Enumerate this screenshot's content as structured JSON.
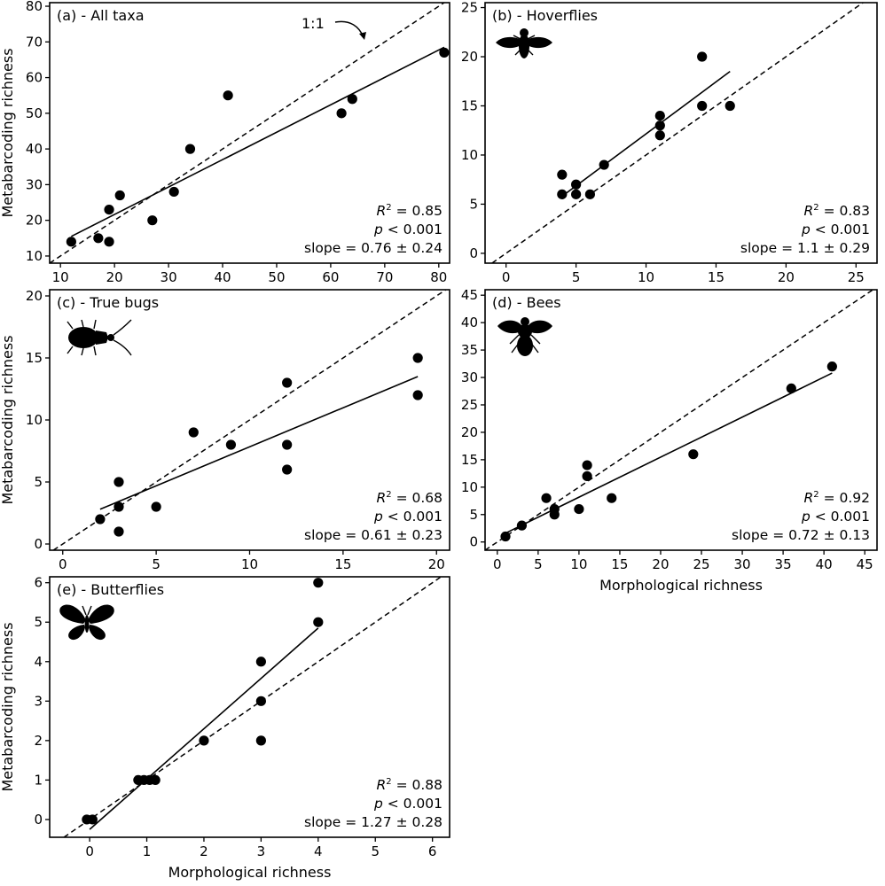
{
  "colors": {
    "points": "#000000",
    "lines": "#000000",
    "background": "#ffffff"
  },
  "chart_data": [
    {
      "id": "a",
      "type": "scatter",
      "title": "(a) - All taxa",
      "xlabel": "",
      "ylabel": "Metabarcoding richness",
      "xlim": [
        8,
        82
      ],
      "ylim": [
        8,
        81
      ],
      "xticks": [
        10,
        20,
        30,
        40,
        50,
        60,
        70,
        80
      ],
      "yticks": [
        10,
        20,
        30,
        40,
        50,
        60,
        70,
        80
      ],
      "points": [
        [
          12,
          14
        ],
        [
          17,
          15
        ],
        [
          19,
          14
        ],
        [
          19,
          23
        ],
        [
          21,
          27
        ],
        [
          27,
          20
        ],
        [
          31,
          28
        ],
        [
          34,
          40
        ],
        [
          41,
          55
        ],
        [
          62,
          50
        ],
        [
          64,
          54
        ],
        [
          81,
          67
        ]
      ],
      "fit_line": [
        [
          12,
          15.5
        ],
        [
          81,
          68.5
        ]
      ],
      "reference_line": "1:1",
      "annotation": "1:1",
      "stats": {
        "r2": "0.85",
        "p": "< 0.001",
        "slope": "0.76 ± 0.24"
      },
      "icon": ""
    },
    {
      "id": "b",
      "type": "scatter",
      "title": "(b) - Hoverflies",
      "xlabel": "",
      "ylabel": "",
      "xlim": [
        -1.5,
        26.5
      ],
      "ylim": [
        -1,
        25.5
      ],
      "xticks": [
        0,
        5,
        10,
        15,
        20,
        25
      ],
      "yticks": [
        0,
        5,
        10,
        15,
        20,
        25
      ],
      "points": [
        [
          4,
          8
        ],
        [
          4,
          6
        ],
        [
          5,
          7
        ],
        [
          5,
          6
        ],
        [
          6,
          6
        ],
        [
          7,
          9
        ],
        [
          11,
          14
        ],
        [
          11,
          13
        ],
        [
          11,
          12
        ],
        [
          14,
          20
        ],
        [
          14,
          15
        ],
        [
          16,
          15
        ]
      ],
      "fit_line": [
        [
          4,
          5.8
        ],
        [
          16,
          18.5
        ]
      ],
      "reference_line": "1:1",
      "stats": {
        "r2": "0.83",
        "p": "< 0.001",
        "slope": "1.1 ± 0.29"
      },
      "icon": "hoverfly-icon"
    },
    {
      "id": "c",
      "type": "scatter",
      "title": "(c) - True bugs",
      "xlabel": "",
      "ylabel": "Metabarcoding richness",
      "xlim": [
        -0.7,
        20.7
      ],
      "ylim": [
        -0.5,
        20.5
      ],
      "xticks": [
        0,
        5,
        10,
        15,
        20
      ],
      "yticks": [
        0,
        5,
        10,
        15,
        20
      ],
      "points": [
        [
          2,
          2
        ],
        [
          3,
          5
        ],
        [
          3,
          3
        ],
        [
          3,
          1
        ],
        [
          5,
          3
        ],
        [
          7,
          9
        ],
        [
          9,
          8
        ],
        [
          12,
          13
        ],
        [
          12,
          8
        ],
        [
          12,
          6
        ],
        [
          19,
          15
        ],
        [
          19,
          12
        ]
      ],
      "fit_line": [
        [
          2,
          2.8
        ],
        [
          19,
          13.5
        ]
      ],
      "reference_line": "1:1",
      "stats": {
        "r2": "0.68",
        "p": "< 0.001",
        "slope": "0.61 ± 0.23"
      },
      "icon": "true-bug-icon"
    },
    {
      "id": "d",
      "type": "scatter",
      "title": "(d) - Bees",
      "xlabel": "Morphological richness",
      "ylabel": "",
      "xlim": [
        -1.5,
        46.5
      ],
      "ylim": [
        -1.5,
        46
      ],
      "xticks": [
        0,
        5,
        10,
        15,
        20,
        25,
        30,
        35,
        40,
        45
      ],
      "yticks": [
        0,
        5,
        10,
        15,
        20,
        25,
        30,
        35,
        40,
        45
      ],
      "points": [
        [
          1,
          1
        ],
        [
          3,
          3
        ],
        [
          6,
          8
        ],
        [
          7,
          6
        ],
        [
          7,
          5
        ],
        [
          10,
          6
        ],
        [
          11,
          14
        ],
        [
          11,
          12
        ],
        [
          14,
          8
        ],
        [
          24,
          16
        ],
        [
          36,
          28
        ],
        [
          41,
          32
        ]
      ],
      "fit_line": [
        [
          1,
          1.6
        ],
        [
          41,
          30.8
        ]
      ],
      "reference_line": "1:1",
      "stats": {
        "r2": "0.92",
        "p": "< 0.001",
        "slope": "0.72 ± 0.13"
      },
      "icon": "bee-icon"
    },
    {
      "id": "e",
      "type": "scatter",
      "title": "(e) - Butterflies",
      "xlabel": "Morphological richness",
      "ylabel": "Metabarcoding richness",
      "xlim": [
        -0.7,
        6.3
      ],
      "ylim": [
        -0.45,
        6.15
      ],
      "xticks": [
        0,
        1,
        2,
        3,
        4,
        5,
        6
      ],
      "yticks": [
        0,
        1,
        2,
        3,
        4,
        5,
        6
      ],
      "points": [
        [
          -0.05,
          0
        ],
        [
          0.05,
          0
        ],
        [
          0.85,
          1
        ],
        [
          0.95,
          1
        ],
        [
          1.05,
          1
        ],
        [
          1.15,
          1
        ],
        [
          2,
          2
        ],
        [
          3,
          4
        ],
        [
          3,
          3
        ],
        [
          3,
          2
        ],
        [
          4,
          6
        ],
        [
          4,
          5
        ]
      ],
      "fit_line": [
        [
          0,
          -0.25
        ],
        [
          4,
          4.85
        ]
      ],
      "reference_line": "1:1",
      "stats": {
        "r2": "0.88",
        "p": "< 0.001",
        "slope": "1.27 ± 0.28"
      },
      "icon": "butterfly-icon"
    }
  ]
}
